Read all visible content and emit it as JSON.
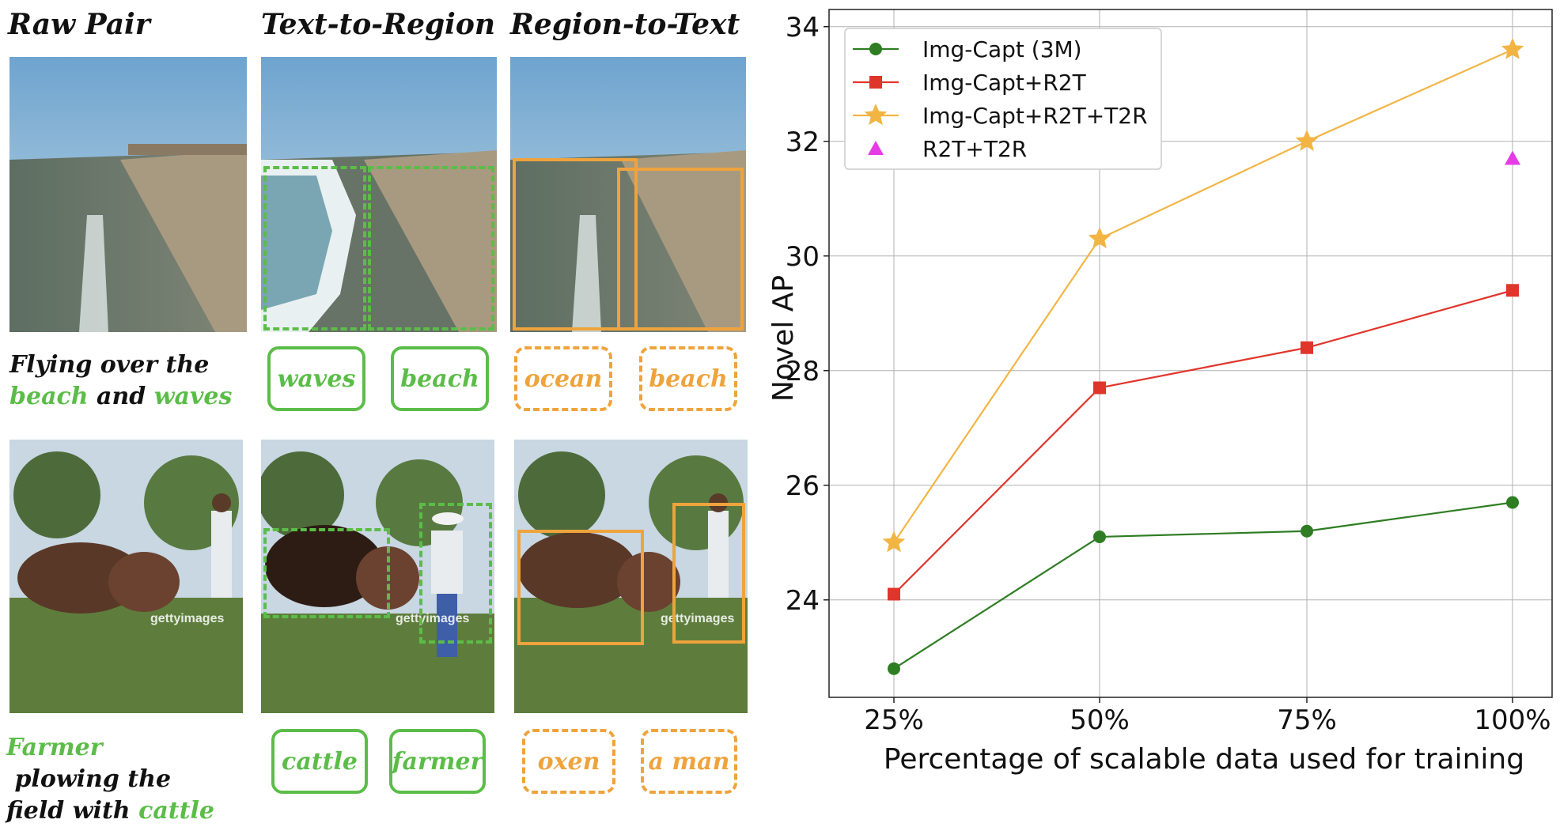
{
  "left": {
    "col_headers": [
      "Raw Pair",
      "Text-to-Region",
      "Region-to-Text"
    ],
    "row1": {
      "caption_line1": "Flying over the",
      "caption_w1": "beach",
      "caption_and": " and ",
      "caption_w2": "waves",
      "t2r_tags": [
        "waves",
        "beach"
      ],
      "r2t_tags": [
        "ocean",
        "beach"
      ]
    },
    "row2": {
      "caption_w1": "Farmer",
      "caption_rest1": " plowing the",
      "caption_line2": "field with ",
      "caption_w2": "cattle",
      "t2r_tags": [
        "cattle",
        "farmer"
      ],
      "r2t_tags": [
        "oxen",
        "a man"
      ],
      "watermark": "gettyimages"
    }
  },
  "colors": {
    "green": "#5bbd48",
    "orange": "#efa33c"
  },
  "chart_data": {
    "type": "line",
    "title": "",
    "xlabel": "Percentage of scalable data used for training",
    "ylabel": "Novel AP",
    "categories": [
      "25%",
      "50%",
      "75%",
      "100%"
    ],
    "ylim": [
      22.3,
      34.3
    ],
    "yticks": [
      24,
      26,
      28,
      30,
      32,
      34
    ],
    "grid": true,
    "legend_position": "top-left",
    "series": [
      {
        "name": "Img-Capt (3M)",
        "values": [
          22.8,
          25.1,
          25.2,
          25.7
        ],
        "color": "#2e7d22",
        "marker": "circle"
      },
      {
        "name": "Img-Capt+R2T",
        "values": [
          24.1,
          27.7,
          28.4,
          29.4
        ],
        "color": "#e0352b",
        "marker": "square"
      },
      {
        "name": "Img-Capt+R2T+T2R",
        "values": [
          25.0,
          30.3,
          32.0,
          33.6
        ],
        "color": "#f2b544",
        "marker": "star"
      },
      {
        "name": "R2T+T2R",
        "values": [
          null,
          null,
          null,
          31.7
        ],
        "color": "#e63ce6",
        "marker": "triangle"
      }
    ]
  }
}
